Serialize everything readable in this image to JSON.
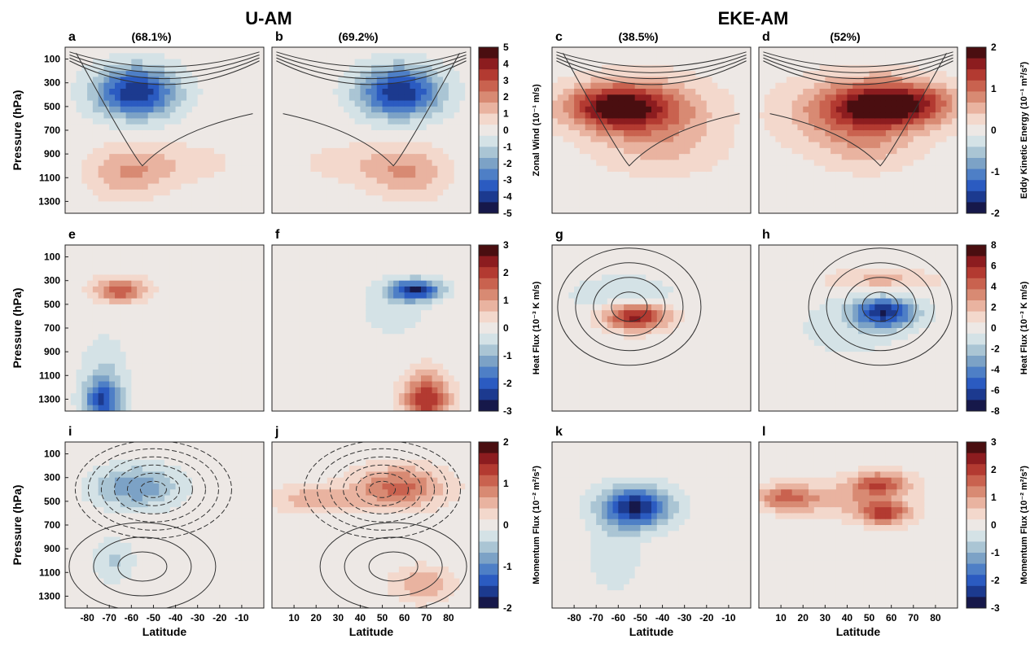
{
  "figure": {
    "group_titles": [
      "U-AM",
      "EKE-AM"
    ]
  },
  "chart_data": [
    {
      "type": "heatmap",
      "panel": "a",
      "variance": "(68.1%)",
      "variable": "Zonal Wind",
      "cb_label": "Zonal Wind (10⁻¹ m/s)",
      "cb_range": [
        -5,
        5
      ],
      "x_ticks": [],
      "x_range": [
        -90,
        0
      ],
      "ylabel": "Pressure (hPa)",
      "y_ticks": [
        100,
        300,
        500,
        700,
        900,
        1100,
        1300
      ],
      "y_range": [
        0,
        1400
      ],
      "blobs": [
        {
          "lat": -58,
          "p": 380,
          "amp": -4.6,
          "slat": 13,
          "sp": 150
        },
        {
          "lat": -62,
          "p": 1060,
          "amp": 1.6,
          "slat": 12,
          "sp": 150
        },
        {
          "lat": -40,
          "p": 980,
          "amp": 0.8,
          "slat": 18,
          "sp": 120
        }
      ]
    },
    {
      "type": "heatmap",
      "panel": "b",
      "variance": "(69.2%)",
      "variable": "Zonal Wind",
      "x_ticks": [],
      "x_range": [
        0,
        90
      ],
      "y_ticks": [],
      "y_range": [
        0,
        1400
      ],
      "blobs": [
        {
          "lat": 58,
          "p": 380,
          "amp": -4.6,
          "slat": 13,
          "sp": 150
        },
        {
          "lat": 62,
          "p": 1060,
          "amp": 1.6,
          "slat": 12,
          "sp": 150
        },
        {
          "lat": 40,
          "p": 980,
          "amp": 0.8,
          "slat": 18,
          "sp": 120
        }
      ]
    },
    {
      "type": "heatmap",
      "panel": "c",
      "variance": "(38.5%)",
      "variable": "Eddy Kinetic Energy",
      "cb_label": "Eddy Kinetic Energy (10⁻¹ m²/s²)",
      "cb_range": [
        -2,
        2
      ],
      "x_ticks": [],
      "x_range": [
        -90,
        0
      ],
      "y_ticks": [],
      "y_range": [
        0,
        1400
      ],
      "blobs": [
        {
          "lat": -62,
          "p": 500,
          "amp": 1.7,
          "slat": 16,
          "sp": 130
        },
        {
          "lat": -45,
          "p": 560,
          "amp": 0.9,
          "slat": 20,
          "sp": 200
        },
        {
          "lat": -40,
          "p": 900,
          "amp": 0.3,
          "slat": 20,
          "sp": 150
        }
      ]
    },
    {
      "type": "heatmap",
      "panel": "d",
      "variance": "(52%)",
      "variable": "Eddy Kinetic Energy",
      "x_ticks": [],
      "x_range": [
        0,
        90
      ],
      "y_ticks": [],
      "y_range": [
        0,
        1400
      ],
      "blobs": [
        {
          "lat": 62,
          "p": 480,
          "amp": 2.0,
          "slat": 18,
          "sp": 130
        },
        {
          "lat": 40,
          "p": 560,
          "amp": 0.9,
          "slat": 20,
          "sp": 200
        },
        {
          "lat": 50,
          "p": 850,
          "amp": 0.4,
          "slat": 15,
          "sp": 150
        }
      ]
    },
    {
      "type": "heatmap",
      "panel": "e",
      "variable": "Heat Flux",
      "cb_label": "Heat Flux (10⁻³ K m/s)",
      "cb_range": [
        -3,
        3
      ],
      "x_ticks": [],
      "x_range": [
        -90,
        0
      ],
      "ylabel": "Pressure (hPa)",
      "y_ticks": [
        100,
        300,
        500,
        700,
        900,
        1100,
        1300
      ],
      "y_range": [
        0,
        1400
      ],
      "blobs": [
        {
          "lat": -65,
          "p": 380,
          "amp": 1.9,
          "slat": 8,
          "sp": 70
        },
        {
          "lat": -73,
          "p": 1320,
          "amp": -2.2,
          "slat": 6,
          "sp": 130
        },
        {
          "lat": -72,
          "p": 1050,
          "amp": -0.6,
          "slat": 7,
          "sp": 200
        }
      ]
    },
    {
      "type": "heatmap",
      "panel": "f",
      "variable": "Heat Flux",
      "x_ticks": [],
      "x_range": [
        0,
        90
      ],
      "y_ticks": [],
      "y_range": [
        0,
        1400
      ],
      "blobs": [
        {
          "lat": 65,
          "p": 380,
          "amp": -2.8,
          "slat": 8,
          "sp": 60
        },
        {
          "lat": 70,
          "p": 1300,
          "amp": 2.4,
          "slat": 7,
          "sp": 150
        },
        {
          "lat": 55,
          "p": 550,
          "amp": -0.5,
          "slat": 10,
          "sp": 150
        }
      ]
    },
    {
      "type": "heatmap",
      "panel": "g",
      "variable": "Heat Flux",
      "cb_label": "Heat Flux (10⁻³ K m/s)",
      "cb_range": [
        -8,
        8
      ],
      "x_ticks": [],
      "x_range": [
        -90,
        0
      ],
      "y_ticks": [],
      "y_range": [
        0,
        1400
      ],
      "blobs": [
        {
          "lat": -52,
          "p": 600,
          "amp": 7.0,
          "slat": 10,
          "sp": 80
        },
        {
          "lat": -58,
          "p": 420,
          "amp": -2.0,
          "slat": 15,
          "sp": 100
        }
      ]
    },
    {
      "type": "heatmap",
      "panel": "h",
      "variable": "Heat Flux",
      "x_ticks": [],
      "x_range": [
        0,
        90
      ],
      "y_ticks": [],
      "y_range": [
        0,
        1400
      ],
      "blobs": [
        {
          "lat": 57,
          "p": 570,
          "amp": -7.0,
          "slat": 10,
          "sp": 90
        },
        {
          "lat": 55,
          "p": 300,
          "amp": 2.2,
          "slat": 17,
          "sp": 70
        },
        {
          "lat": 40,
          "p": 700,
          "amp": -1.0,
          "slat": 18,
          "sp": 200
        }
      ]
    },
    {
      "type": "heatmap",
      "panel": "i",
      "variable": "Momentum Flux",
      "cb_label": "Momentum Flux (10⁻² m²/s²)",
      "cb_range": [
        -2,
        2
      ],
      "x_ticks": [
        -80,
        -70,
        -60,
        -50,
        -40,
        -30,
        -20,
        -10
      ],
      "x_range": [
        -90,
        0
      ],
      "xlabel": "Latitude",
      "ylabel": "Pressure (hPa)",
      "y_ticks": [
        100,
        300,
        500,
        700,
        900,
        1100,
        1300
      ],
      "y_range": [
        0,
        1400
      ],
      "blobs": [
        {
          "lat": -58,
          "p": 380,
          "amp": -1.0,
          "slat": 13,
          "sp": 120
        },
        {
          "lat": -68,
          "p": 1000,
          "amp": -0.5,
          "slat": 6,
          "sp": 120
        }
      ]
    },
    {
      "type": "heatmap",
      "panel": "j",
      "variable": "Momentum Flux",
      "x_ticks": [
        10,
        20,
        30,
        40,
        50,
        60,
        70,
        80
      ],
      "x_range": [
        0,
        90
      ],
      "xlabel": "Latitude",
      "y_ticks": [],
      "y_range": [
        0,
        1400
      ],
      "blobs": [
        {
          "lat": 58,
          "p": 380,
          "amp": 1.1,
          "slat": 14,
          "sp": 120
        },
        {
          "lat": 20,
          "p": 480,
          "amp": 0.6,
          "slat": 15,
          "sp": 80
        },
        {
          "lat": 68,
          "p": 1200,
          "amp": 0.7,
          "slat": 9,
          "sp": 100
        }
      ]
    },
    {
      "type": "heatmap",
      "panel": "k",
      "variable": "Momentum Flux",
      "x_ticks": [
        -80,
        -70,
        -60,
        -50,
        -40,
        -30,
        -20,
        -10
      ],
      "x_range": [
        -90,
        0
      ],
      "xlabel": "Latitude",
      "y_ticks": [],
      "y_range": [
        0,
        1400
      ],
      "blobs": [
        {
          "lat": -52,
          "p": 550,
          "amp": -2.9,
          "slat": 11,
          "sp": 120
        },
        {
          "lat": -62,
          "p": 950,
          "amp": -0.6,
          "slat": 8,
          "sp": 200
        }
      ]
    },
    {
      "type": "heatmap",
      "panel": "l",
      "variable": "Momentum Flux",
      "cb_label": "Momentum Flux (10⁻² m²/s²)",
      "cb_range": [
        -3,
        3
      ],
      "x_ticks": [
        10,
        20,
        30,
        40,
        50,
        60,
        70,
        80
      ],
      "x_range": [
        0,
        90
      ],
      "xlabel": "Latitude",
      "y_ticks": [],
      "y_range": [
        0,
        1400
      ],
      "blobs": [
        {
          "lat": 12,
          "p": 470,
          "amp": 1.4,
          "slat": 8,
          "sp": 70
        },
        {
          "lat": 55,
          "p": 350,
          "amp": 1.8,
          "slat": 9,
          "sp": 70
        },
        {
          "lat": 57,
          "p": 600,
          "amp": 2.0,
          "slat": 8,
          "sp": 70
        },
        {
          "lat": 35,
          "p": 480,
          "amp": 0.9,
          "slat": 20,
          "sp": 100
        }
      ]
    }
  ],
  "colorbars": [
    {
      "for": "a-b",
      "label": "Zonal Wind (10⁻¹ m/s)",
      "ticks": [
        5,
        4,
        3,
        2,
        1,
        0,
        -1,
        -2,
        -3,
        -4,
        -5
      ],
      "range": [
        -5,
        5
      ]
    },
    {
      "for": "c-d",
      "label": "Eddy Kinetic Energy (10⁻¹ m²/s²)",
      "ticks": [
        2,
        1,
        0,
        -1,
        -2
      ],
      "range": [
        -2,
        2
      ]
    },
    {
      "for": "e-f",
      "label": "Heat Flux (10⁻³ K m/s)",
      "ticks": [
        3,
        2,
        1,
        0,
        -1,
        -2,
        -3
      ],
      "range": [
        -3,
        3
      ]
    },
    {
      "for": "g-h",
      "label": "Heat Flux (10⁻³ K m/s)",
      "ticks": [
        8,
        6,
        4,
        2,
        0,
        -2,
        -4,
        -6,
        -8
      ],
      "range": [
        -8,
        8
      ]
    },
    {
      "for": "i-j",
      "label": "Momentum Flux (10⁻² m²/s²)",
      "ticks": [
        2,
        1,
        0,
        -1,
        -2
      ],
      "range": [
        -2,
        2
      ]
    },
    {
      "for": "k-l",
      "label": "Momentum Flux (10⁻² m²/s²)",
      "ticks": [
        3,
        2,
        1,
        0,
        -1,
        -2,
        -3
      ],
      "range": [
        -3,
        3
      ]
    }
  ]
}
